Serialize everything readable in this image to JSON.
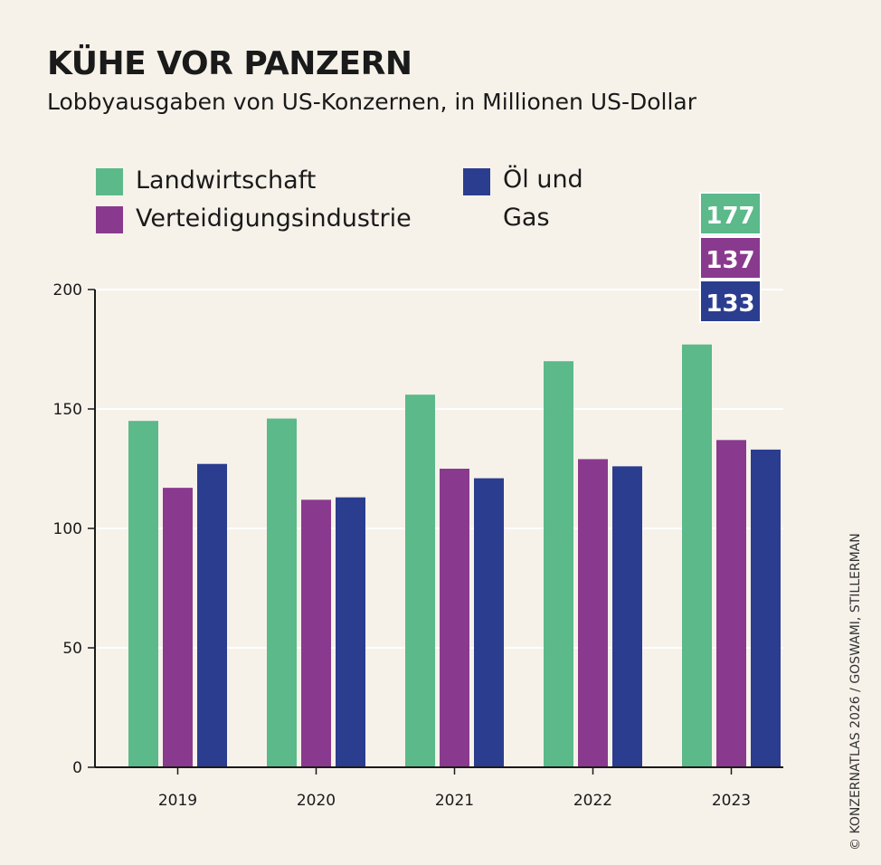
{
  "chart_data": {
    "type": "bar",
    "title": "KÜHE VOR PANZERN",
    "subtitle": "Lobbyausgaben von US-Konzernen, in Millionen US-Dollar",
    "categories": [
      "2019",
      "2020",
      "2021",
      "2022",
      "2023"
    ],
    "series": [
      {
        "name": "Landwirtschaft",
        "color": "#5bb98a",
        "values": [
          145,
          146,
          156,
          170,
          177
        ]
      },
      {
        "name": "Verteidigungsindustrie",
        "color": "#8a3a8e",
        "values": [
          117,
          112,
          125,
          129,
          137
        ]
      },
      {
        "name": "Öl und Gas",
        "color": "#2b3d8f",
        "values": [
          127,
          113,
          121,
          126,
          133
        ]
      }
    ],
    "legend_lines": {
      "oil_line1": "Öl und",
      "oil_line2": "Gas"
    },
    "data_labels": [
      "177",
      "137",
      "133"
    ],
    "ylim": [
      0,
      200
    ],
    "yticks": [
      0,
      50,
      100,
      150,
      200
    ],
    "grid": true,
    "legend_position": "top"
  },
  "credit": "© KONZERNATLAS 2026 / GOSWAMI, STILLERMAN"
}
